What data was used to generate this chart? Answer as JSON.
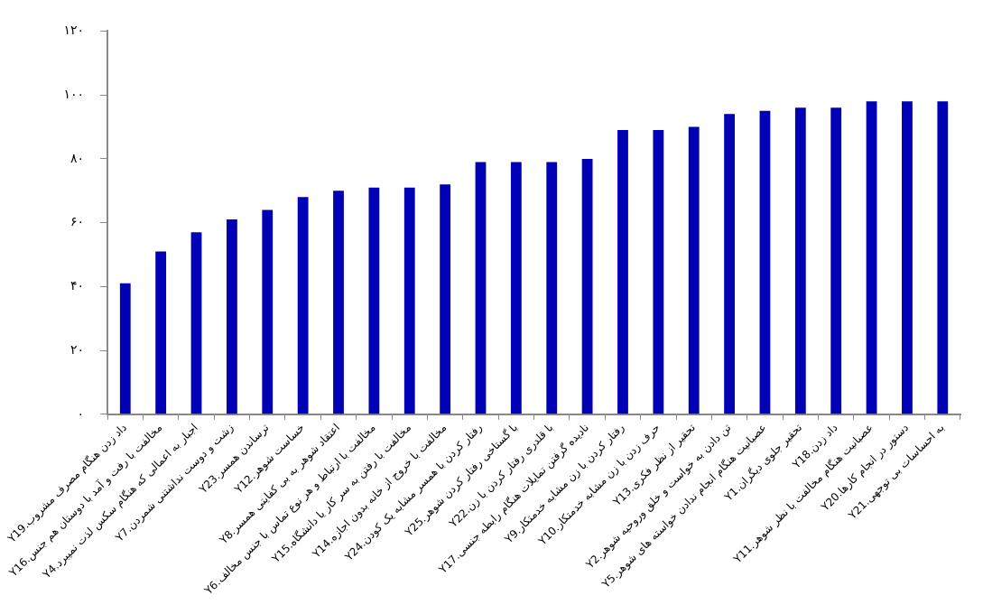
{
  "chart_data": {
    "type": "bar",
    "categories": [
      "Y19.داد زدن هنگام مصرف مشروب",
      "Y16.مخالفت با رفت و آمد با دوستان هم جنس",
      "Y4.اجبار به اعمالی که هنگام سکس لذت نمیبرد",
      "Y7.زشت و دوست نداشتنی شمردن",
      "Y23.ترساندن همسر",
      "Y12.خساست شوهر",
      "Y8.اعتقاد شوهر به بی کفایتی همسر",
      "Y6.مخالفت با ارتباط و هر نوع تماس با جنس مخالف",
      "Y15.مخالفت با رفتن به سر کار یا دانشگاه",
      "Y14.مخالفت با خروج از خانه بدون اجازه",
      "Y24.رفتار کردن با همسر مشابه یک کودن",
      "Y25.با گستاخی رفتار کردن شوهر",
      "Y22.با قلدری رفتار کردن با زن",
      "Y17.نادیده گرفتن تمایلات هنگام رابطه جنسی",
      "Y9.رفتار کردن با زن مشابه خدمتکار",
      "Y10.حرف زدن با زن مشابه خدمتکار",
      "Y13.تحقیر از نظر فکری",
      "Y2.تن دادن به خواست و خلق وروحیه شوهر",
      "Y5.عصبانیت هنگام انجام ندادن خواسته های شوهر",
      "Y1.تحقیر جلوی دیگران",
      "Y18.داد زدن",
      "Y11.عصبانیت هنگام مخالفت با نظر شوهر",
      "Y20.دستور در انجام کارها",
      "Y21.به احساسات بی توجهی"
    ],
    "values": [
      41,
      51,
      57,
      61,
      64,
      68,
      70,
      71,
      71,
      72,
      79,
      79,
      79,
      80,
      89,
      89,
      90,
      94,
      95,
      96,
      96,
      98,
      98,
      98
    ],
    "color": "#0000b4",
    "ylim": [
      0,
      120
    ],
    "yticks": [
      {
        "value": 0,
        "label": "۰"
      },
      {
        "value": 20,
        "label": "۲۰"
      },
      {
        "value": 40,
        "label": "۴۰"
      },
      {
        "value": 60,
        "label": "۶۰"
      },
      {
        "value": 80,
        "label": "۸۰"
      },
      {
        "value": 100,
        "label": "۱۰۰"
      },
      {
        "value": 120,
        "label": "۱۲۰"
      }
    ],
    "grid": false,
    "legend": false
  }
}
